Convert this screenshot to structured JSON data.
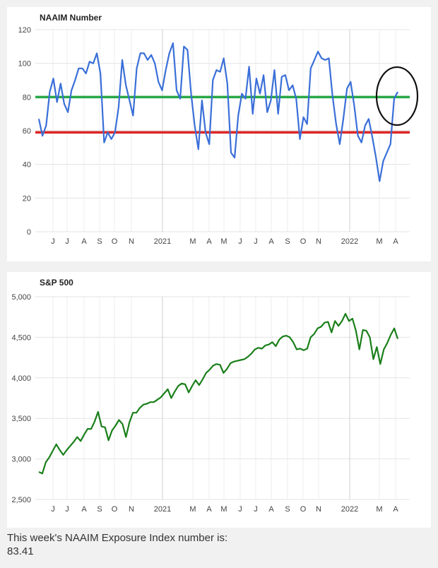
{
  "chart_data": [
    {
      "type": "line",
      "title": "NAAIM Number",
      "ylim": [
        0,
        120
      ],
      "yticks": [
        "0",
        "20",
        "40",
        "60",
        "80",
        "100",
        "120"
      ],
      "xticks": [
        "J",
        "J",
        "A",
        "S",
        "O",
        "N",
        "2021",
        "M",
        "A",
        "M",
        "J",
        "J",
        "A",
        "S",
        "O",
        "N",
        "2022",
        "M",
        "A"
      ],
      "grid": true,
      "reference_lines": [
        {
          "value": 80,
          "color": "#28a745"
        },
        {
          "value": 59,
          "color": "#dc2626"
        }
      ],
      "annotation": "circle around latest reading",
      "series": [
        {
          "color": "#3a6fd8",
          "values": [
            67,
            57,
            63,
            83,
            91,
            77,
            88,
            76,
            71,
            84,
            90,
            97,
            97,
            94,
            101,
            100,
            106,
            94,
            53,
            59,
            55,
            59,
            74,
            102,
            87,
            78,
            69,
            97,
            106,
            106,
            102,
            105,
            100,
            89,
            84,
            96,
            106,
            112,
            84,
            79,
            110,
            108,
            82,
            63,
            49,
            78,
            59,
            52,
            90,
            96,
            95,
            103,
            88,
            47,
            44,
            69,
            82,
            79,
            98,
            70,
            91,
            82,
            93,
            71,
            78,
            96,
            70,
            92,
            93,
            84,
            87,
            79,
            55,
            68,
            64,
            97,
            102,
            107,
            103,
            102,
            103,
            81,
            64,
            52,
            67,
            85,
            89,
            75,
            57,
            53,
            63,
            67,
            56,
            44,
            30,
            42,
            47,
            52,
            79,
            83
          ]
        }
      ]
    },
    {
      "type": "line",
      "title": "S&P 500",
      "ylim": [
        2500,
        5000
      ],
      "yticks": [
        "2,500",
        "3,000",
        "3,500",
        "4,000",
        "4,500",
        "5,000"
      ],
      "xticks": [
        "J",
        "J",
        "A",
        "S",
        "O",
        "N",
        "2021",
        "M",
        "A",
        "M",
        "J",
        "J",
        "A",
        "S",
        "O",
        "N",
        "2022",
        "M",
        "A"
      ],
      "grid": true,
      "series": [
        {
          "color": "#1a7f1a",
          "values": [
            2840,
            2820,
            2960,
            3020,
            3100,
            3180,
            3110,
            3050,
            3110,
            3160,
            3210,
            3270,
            3220,
            3300,
            3370,
            3370,
            3460,
            3580,
            3400,
            3390,
            3230,
            3350,
            3410,
            3480,
            3430,
            3270,
            3450,
            3570,
            3570,
            3630,
            3670,
            3680,
            3700,
            3700,
            3730,
            3760,
            3810,
            3860,
            3750,
            3830,
            3900,
            3930,
            3920,
            3820,
            3900,
            3970,
            3910,
            3980,
            4060,
            4100,
            4150,
            4170,
            4160,
            4060,
            4110,
            4180,
            4200,
            4210,
            4220,
            4230,
            4260,
            4300,
            4350,
            4370,
            4360,
            4400,
            4410,
            4440,
            4390,
            4470,
            4510,
            4520,
            4500,
            4440,
            4350,
            4360,
            4340,
            4360,
            4500,
            4540,
            4610,
            4630,
            4680,
            4690,
            4560,
            4700,
            4640,
            4700,
            4790,
            4700,
            4730,
            4580,
            4350,
            4590,
            4580,
            4500,
            4230,
            4380,
            4170,
            4350,
            4430,
            4530,
            4610,
            4480
          ]
        }
      ]
    }
  ],
  "footer": {
    "line1": "This week's NAAIM Exposure Index number is:",
    "line2": "83.41"
  }
}
